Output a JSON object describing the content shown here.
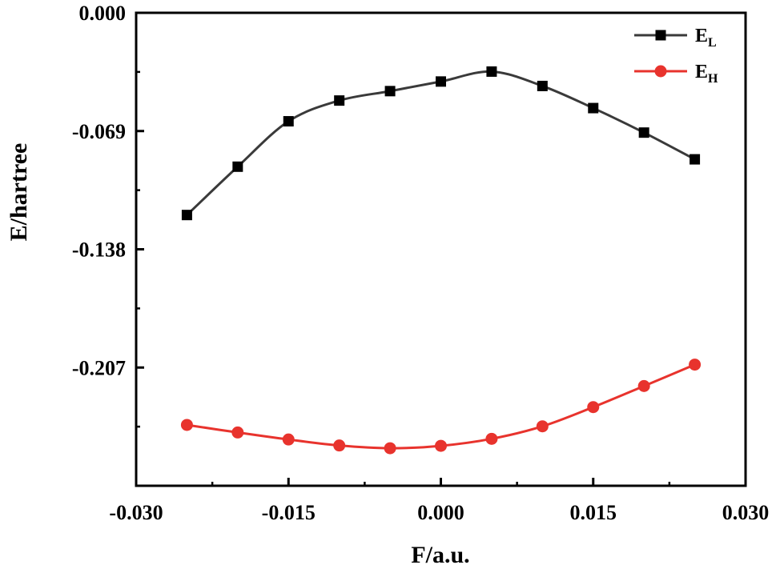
{
  "chart_data": {
    "type": "line",
    "xlabel": "F/a.u.",
    "ylabel": "E/hartree",
    "xlim": [
      -0.03,
      0.03
    ],
    "ylim": [
      -0.276,
      0.0
    ],
    "xticks": [
      -0.03,
      -0.015,
      0.0,
      0.015,
      0.03
    ],
    "xtick_labels": [
      "-0.030",
      "-0.015",
      "0.000",
      "0.015",
      "0.030"
    ],
    "yticks": [
      0.0,
      -0.069,
      -0.138,
      -0.207
    ],
    "ytick_labels": [
      "0.000",
      "-0.069",
      "-0.138",
      "-0.207"
    ],
    "grid": false,
    "legend_position": "top-right",
    "x": [
      -0.025,
      -0.02,
      -0.015,
      -0.01,
      -0.005,
      0.0,
      0.005,
      0.01,
      0.015,
      0.02,
      0.025
    ],
    "series": [
      {
        "name_main": "E",
        "name_sub": "L",
        "color": "#3a3a3a",
        "marker": "square",
        "marker_color": "#000000",
        "values": [
          -0.118,
          -0.0898,
          -0.0633,
          -0.0512,
          -0.0457,
          -0.0401,
          -0.0343,
          -0.0427,
          -0.0556,
          -0.0699,
          -0.0855
        ]
      },
      {
        "name_main": "E",
        "name_sub": "H",
        "color": "#e8332d",
        "marker": "circle",
        "marker_color": "#e8332d",
        "values": [
          -0.2405,
          -0.2449,
          -0.249,
          -0.2525,
          -0.2541,
          -0.2527,
          -0.2486,
          -0.2413,
          -0.2301,
          -0.2178,
          -0.2053
        ]
      }
    ]
  }
}
